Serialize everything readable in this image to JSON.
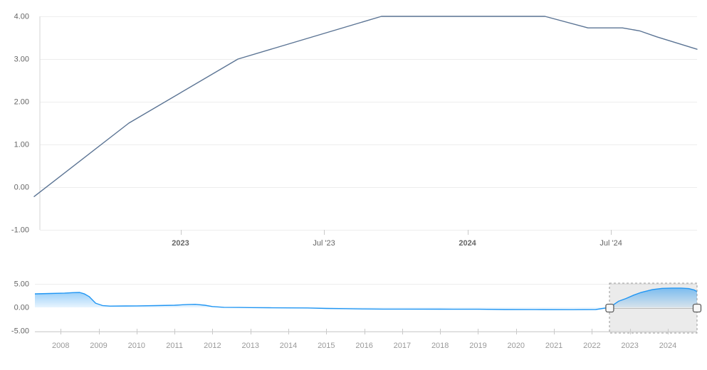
{
  "colors": {
    "main_line": "#5b7494",
    "nav_line": "#2196f3",
    "nav_fill_top": "rgba(33,150,243,0.55)",
    "nav_fill_bottom": "rgba(33,150,243,0.05)",
    "grid": "#ededed",
    "axis_line": "#d6d6d6",
    "tick": "#c9c9c9",
    "label": "#666666",
    "nav_label": "#999999",
    "selection_fill": "rgba(0,0,0,0.08)",
    "selection_border": "#9a9a9a",
    "connector": "#bbbbbb",
    "handle_fill": "#f7f7f7",
    "handle_stroke": "#5e5e5e"
  },
  "chart_data": [
    {
      "type": "line",
      "name": "main-rate-chart",
      "title": "",
      "xlabel": "",
      "ylabel": "",
      "x_unit": "decimal_year",
      "xlim": [
        2022.49,
        2024.8
      ],
      "ylim": [
        -1,
        4
      ],
      "grid": true,
      "legend": "none",
      "x": [
        2022.49,
        2022.82,
        2023.2,
        2023.7,
        2024.27,
        2024.42,
        2024.54,
        2024.6,
        2024.66,
        2024.8
      ],
      "values": [
        -0.22,
        1.5,
        3.0,
        4.0,
        4.0,
        3.73,
        3.73,
        3.66,
        3.52,
        3.23
      ],
      "yticks": [
        {
          "v": 4,
          "label": "4.00"
        },
        {
          "v": 3,
          "label": "3.00"
        },
        {
          "v": 2,
          "label": "2.00"
        },
        {
          "v": 1,
          "label": "1.00"
        },
        {
          "v": 0,
          "label": "0.00"
        },
        {
          "v": -1,
          "label": "-1.00"
        }
      ],
      "xticks": [
        {
          "v": 2023.0,
          "label": "2023",
          "bold": true
        },
        {
          "v": 2023.5,
          "label": "Jul '23",
          "bold": false
        },
        {
          "v": 2024.0,
          "label": "2024",
          "bold": true
        },
        {
          "v": 2024.5,
          "label": "Jul '24",
          "bold": false
        }
      ]
    },
    {
      "type": "area",
      "name": "navigator-chart",
      "title": "",
      "x_unit": "decimal_year",
      "xlim": [
        2007.32,
        2024.77
      ],
      "ylim": [
        -5,
        5
      ],
      "legend": "none",
      "x": [
        2007.32,
        2007.7,
        2008.1,
        2008.35,
        2008.5,
        2008.62,
        2008.75,
        2008.92,
        2009.1,
        2009.3,
        2009.7,
        2010.0,
        2010.5,
        2011.0,
        2011.35,
        2011.55,
        2011.8,
        2012.0,
        2012.3,
        2012.7,
        2013.0,
        2013.5,
        2014.0,
        2014.5,
        2015.0,
        2015.5,
        2016.0,
        2016.5,
        2017.0,
        2018.0,
        2019.0,
        2019.7,
        2020.5,
        2021.5,
        2022.1,
        2022.47,
        2022.7,
        2022.9,
        2023.1,
        2023.3,
        2023.6,
        2023.85,
        2024.1,
        2024.35,
        2024.55,
        2024.7,
        2024.77
      ],
      "values": [
        2.88,
        2.95,
        3.05,
        3.15,
        3.18,
        2.9,
        2.3,
        0.9,
        0.4,
        0.28,
        0.3,
        0.32,
        0.38,
        0.45,
        0.62,
        0.65,
        0.45,
        0.18,
        0.02,
        -0.02,
        -0.05,
        -0.07,
        -0.1,
        -0.12,
        -0.22,
        -0.28,
        -0.33,
        -0.36,
        -0.37,
        -0.38,
        -0.4,
        -0.45,
        -0.47,
        -0.48,
        -0.45,
        0.0,
        1.3,
        1.9,
        2.6,
        3.2,
        3.8,
        4.05,
        4.1,
        4.1,
        4.0,
        3.7,
        3.35
      ],
      "yticks": [
        {
          "v": 5,
          "label": "5.00",
          "grid": true
        },
        {
          "v": 0,
          "label": "0.00",
          "grid": false
        },
        {
          "v": -5,
          "label": "-5.00",
          "grid": true
        }
      ],
      "xticks": [
        {
          "v": 2008,
          "label": "2008"
        },
        {
          "v": 2009,
          "label": "2009"
        },
        {
          "v": 2010,
          "label": "2010"
        },
        {
          "v": 2011,
          "label": "2011"
        },
        {
          "v": 2012,
          "label": "2012"
        },
        {
          "v": 2013,
          "label": "2013"
        },
        {
          "v": 2014,
          "label": "2014"
        },
        {
          "v": 2015,
          "label": "2015"
        },
        {
          "v": 2016,
          "label": "2016"
        },
        {
          "v": 2017,
          "label": "2017"
        },
        {
          "v": 2018,
          "label": "2018"
        },
        {
          "v": 2019,
          "label": "2019"
        },
        {
          "v": 2020,
          "label": "2020"
        },
        {
          "v": 2021,
          "label": "2021"
        },
        {
          "v": 2022,
          "label": "2022"
        },
        {
          "v": 2023,
          "label": "2023"
        },
        {
          "v": 2024,
          "label": "2024"
        }
      ],
      "selection": {
        "from": 2022.47,
        "to": 2024.77
      }
    }
  ]
}
